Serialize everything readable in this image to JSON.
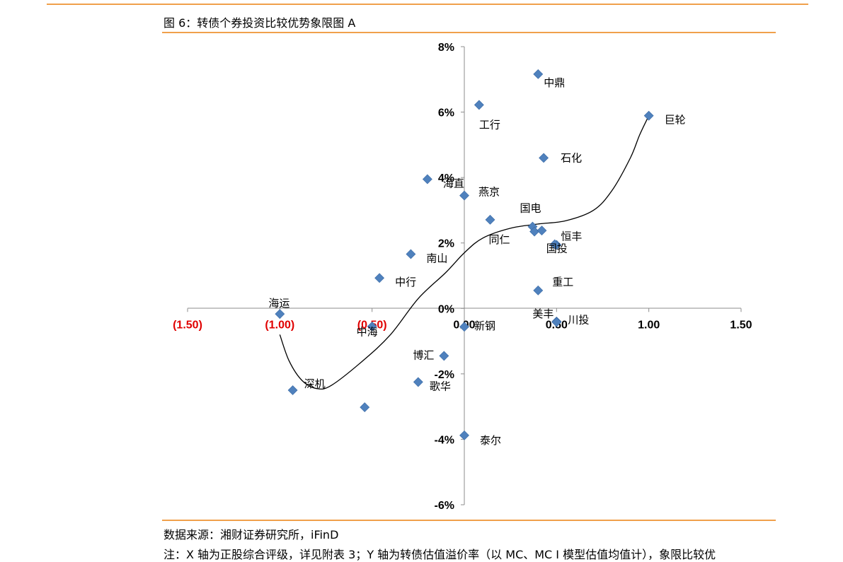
{
  "figure": {
    "title": "图 6：转债个券投资比较优势象限图 A",
    "source": "数据来源：湘财证券研究所，iFinD",
    "note": "注：X 轴为正股综合评级，详见附表 3；Y 轴为转债估值溢价率（以 MC、MC I 模型估值均值计），象限比较优"
  },
  "colors": {
    "point": "#4f81bd",
    "negative_tick": "#e00000",
    "positive_tick": "#000000",
    "rule": "#f0a04b"
  },
  "chart_data": {
    "type": "scatter",
    "title": "",
    "xlabel": "",
    "ylabel": "",
    "xlim": [
      -1.5,
      1.5
    ],
    "ylim": [
      -0.06,
      0.08
    ],
    "grid": false,
    "legend": "none",
    "x_ticks": [
      {
        "value": -1.5,
        "label": "(1.50)"
      },
      {
        "value": -1.0,
        "label": "(1.00)"
      },
      {
        "value": -0.5,
        "label": "(0.50)"
      },
      {
        "value": 0.0,
        "label": "0.00"
      },
      {
        "value": 0.5,
        "label": "0.50"
      },
      {
        "value": 1.0,
        "label": "1.00"
      },
      {
        "value": 1.5,
        "label": "1.50"
      }
    ],
    "y_ticks": [
      {
        "value": 0.08,
        "label": "8%"
      },
      {
        "value": 0.06,
        "label": "6%"
      },
      {
        "value": 0.04,
        "label": "4%"
      },
      {
        "value": 0.02,
        "label": "2%"
      },
      {
        "value": 0.0,
        "label": "0%"
      },
      {
        "value": -0.02,
        "label": "-2%"
      },
      {
        "value": -0.04,
        "label": "-4%"
      },
      {
        "value": -0.06,
        "label": "-6%"
      }
    ],
    "points": [
      {
        "label": "中鼎",
        "x": 0.4,
        "y": 0.0716
      },
      {
        "label": "工行",
        "x": 0.08,
        "y": 0.0622
      },
      {
        "label": "巨轮",
        "x": 1.0,
        "y": 0.0589
      },
      {
        "label": "石化",
        "x": 0.43,
        "y": 0.046
      },
      {
        "label": "海直",
        "x": -0.2,
        "y": 0.0395
      },
      {
        "label": "燕京",
        "x": 0.0,
        "y": 0.0345
      },
      {
        "label": "国电",
        "x": 0.37,
        "y": 0.025
      },
      {
        "label": "",
        "x": 0.38,
        "y": 0.0235
      },
      {
        "label": "",
        "x": 0.42,
        "y": 0.0238
      },
      {
        "label": "同仁",
        "x": 0.14,
        "y": 0.0271
      },
      {
        "label": "恒丰",
        "x": 0.5,
        "y": 0.0194
      },
      {
        "label": "国投",
        "x": 0.49,
        "y": 0.0196
      },
      {
        "label": "南山",
        "x": -0.29,
        "y": 0.0166
      },
      {
        "label": "中行",
        "x": -0.46,
        "y": 0.0093
      },
      {
        "label": "重工",
        "x": 0.4,
        "y": 0.0055
      },
      {
        "label": "海运",
        "x": -1.0,
        "y": -0.0017
      },
      {
        "label": "美丰",
        "x": 0.5,
        "y": -0.004
      },
      {
        "label": "川投",
        "x": 0.5,
        "y": -0.0042
      },
      {
        "label": "新钢",
        "x": 0.0,
        "y": -0.0056
      },
      {
        "label": "中海",
        "x": -0.5,
        "y": -0.0055
      },
      {
        "label": "博汇",
        "x": -0.11,
        "y": -0.0145
      },
      {
        "label": "歌华",
        "x": -0.25,
        "y": -0.0225
      },
      {
        "label": "深机",
        "x": -0.93,
        "y": -0.025
      },
      {
        "label": "",
        "x": -0.54,
        "y": -0.0302
      },
      {
        "label": "泰尔",
        "x": 0.0,
        "y": -0.0388
      }
    ],
    "trend_curve": [
      {
        "x": -1.0,
        "y": -0.008
      },
      {
        "x": -0.95,
        "y": -0.016
      },
      {
        "x": -0.88,
        "y": -0.022
      },
      {
        "x": -0.8,
        "y": -0.0245
      },
      {
        "x": -0.72,
        "y": -0.0235
      },
      {
        "x": -0.55,
        "y": -0.016
      },
      {
        "x": -0.4,
        "y": -0.008
      },
      {
        "x": -0.25,
        "y": 0.003
      },
      {
        "x": -0.1,
        "y": 0.011
      },
      {
        "x": 0.0,
        "y": 0.017
      },
      {
        "x": 0.1,
        "y": 0.0215
      },
      {
        "x": 0.25,
        "y": 0.0245
      },
      {
        "x": 0.4,
        "y": 0.0258
      },
      {
        "x": 0.55,
        "y": 0.0268
      },
      {
        "x": 0.7,
        "y": 0.03
      },
      {
        "x": 0.8,
        "y": 0.036
      },
      {
        "x": 0.9,
        "y": 0.046
      },
      {
        "x": 0.95,
        "y": 0.053
      },
      {
        "x": 1.0,
        "y": 0.0589
      }
    ]
  }
}
